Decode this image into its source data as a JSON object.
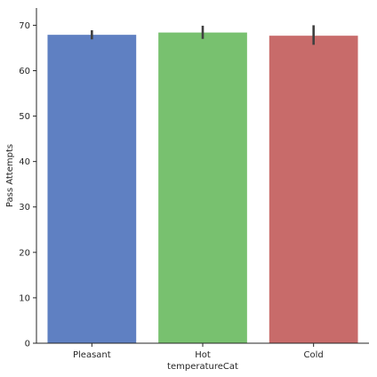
{
  "chart_data": {
    "type": "bar",
    "title": "",
    "xlabel": "temperatureCat",
    "ylabel": "Pass Attempts",
    "categories": [
      "Pleasant",
      "Hot",
      "Cold"
    ],
    "values": [
      67.9,
      68.4,
      67.7
    ],
    "error_bars": [
      {
        "low": 66.9,
        "high": 68.9
      },
      {
        "low": 67.0,
        "high": 69.9
      },
      {
        "low": 65.7,
        "high": 70.0
      }
    ],
    "colors": [
      "#5f80c2",
      "#78c16f",
      "#c86b6a"
    ],
    "error_bar_color": "#404040",
    "ylim": [
      0,
      73.8
    ],
    "yticks": [
      0,
      10,
      20,
      30,
      40,
      50,
      60,
      70
    ],
    "grid": false,
    "legend": "none"
  }
}
